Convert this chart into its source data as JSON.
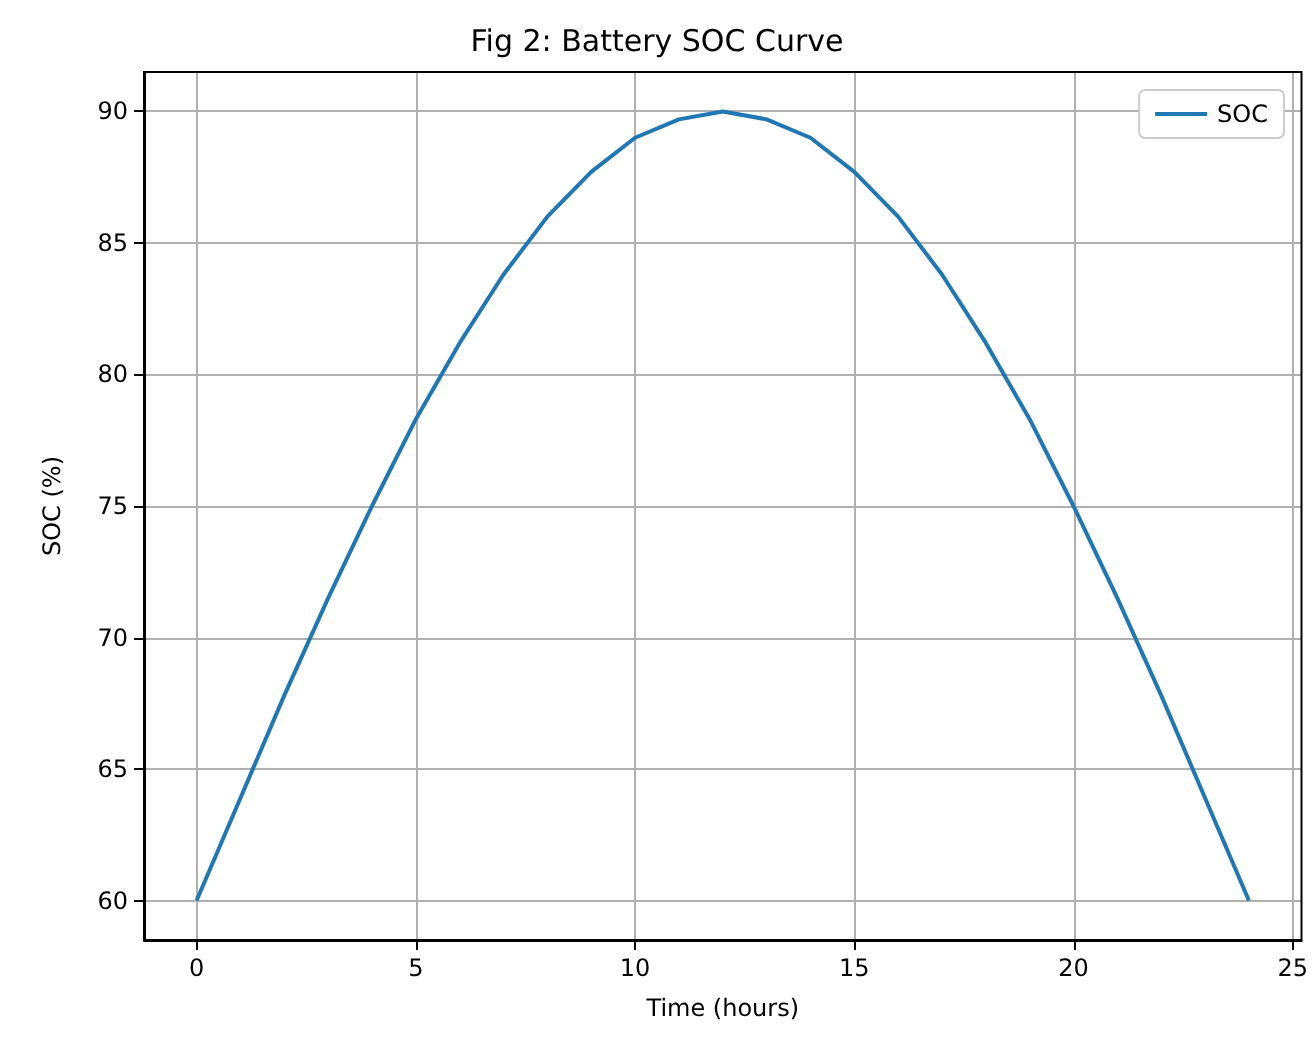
{
  "chart_data": {
    "type": "line",
    "title": "Fig 2: Battery SOC Curve",
    "xlabel": "Time (hours)",
    "ylabel": "SOC (%)",
    "x": [
      0,
      1,
      2,
      3,
      4,
      5,
      6,
      7,
      8,
      9,
      10,
      11,
      12,
      13,
      14,
      15,
      16,
      17,
      18,
      19,
      20,
      21,
      22,
      23,
      24
    ],
    "series": [
      {
        "name": "SOC",
        "color": "#1f77b4",
        "values": [
          60,
          63.9,
          67.8,
          71.5,
          75,
          78.3,
          81.2,
          83.8,
          86,
          87.7,
          89,
          89.7,
          90,
          89.7,
          89,
          87.7,
          86,
          83.8,
          81.2,
          78.3,
          75,
          71.5,
          67.8,
          63.9,
          60
        ]
      }
    ],
    "xlim": [
      -1.2,
      25.2
    ],
    "xticks": [
      0,
      5,
      10,
      15,
      20,
      25
    ],
    "ylim": [
      58.5,
      91.5
    ],
    "yticks": [
      60,
      65,
      70,
      75,
      80,
      85,
      90
    ],
    "grid": true,
    "legend": "top right",
    "marker": "none",
    "line_style": "solid"
  }
}
